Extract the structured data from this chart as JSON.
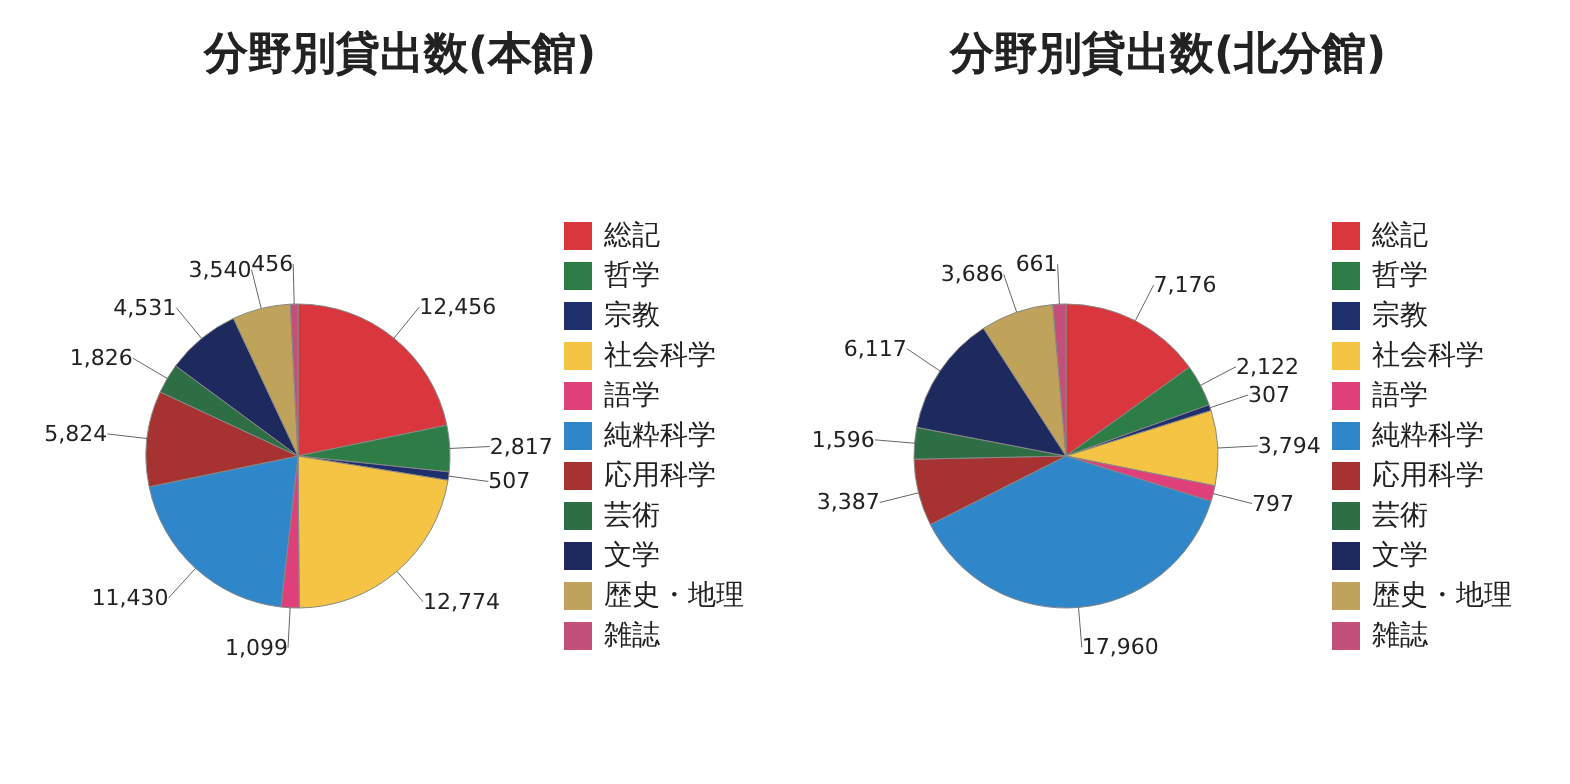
{
  "chart_data": [
    {
      "type": "pie",
      "title": "分野別貸出数(本館)",
      "categories": [
        "総記",
        "哲学",
        "宗教",
        "社会科学",
        "語学",
        "純粋科学",
        "応用科学",
        "芸術",
        "文学",
        "歴史・地理",
        "雑誌"
      ],
      "values": [
        12456,
        2817,
        507,
        12774,
        1099,
        11430,
        5824,
        1826,
        4531,
        3540,
        456
      ],
      "value_labels": [
        "12,456",
        "2,817",
        "507",
        "12,774",
        "1,099",
        "11,430",
        "5,824",
        "1,826",
        "4,531",
        "3,540",
        "456"
      ],
      "colors": [
        "#d9363e",
        "#2e7d47",
        "#1f2f6b",
        "#f6c445",
        "#e0407a",
        "#2f86c8",
        "#a63232",
        "#2e6e44",
        "#1e2a5e",
        "#bfa35a",
        "#c2507a"
      ],
      "legend": "right"
    },
    {
      "type": "pie",
      "title": "分野別貸出数(北分館)",
      "categories": [
        "総記",
        "哲学",
        "宗教",
        "社会科学",
        "語学",
        "純粋科学",
        "応用科学",
        "芸術",
        "文学",
        "歴史・地理",
        "雑誌"
      ],
      "values": [
        7176,
        2122,
        307,
        3794,
        797,
        17960,
        3387,
        1596,
        6117,
        3686,
        661
      ],
      "value_labels": [
        "7,176",
        "2,122",
        "307",
        "3,794",
        "797",
        "17,960",
        "3,387",
        "1,596",
        "6,117",
        "3,686",
        "661"
      ],
      "colors": [
        "#d9363e",
        "#2e7d47",
        "#1f2f6b",
        "#f6c445",
        "#e0407a",
        "#2f86c8",
        "#a63232",
        "#2e6e44",
        "#1e2a5e",
        "#bfa35a",
        "#c2507a"
      ],
      "legend": "right"
    }
  ]
}
